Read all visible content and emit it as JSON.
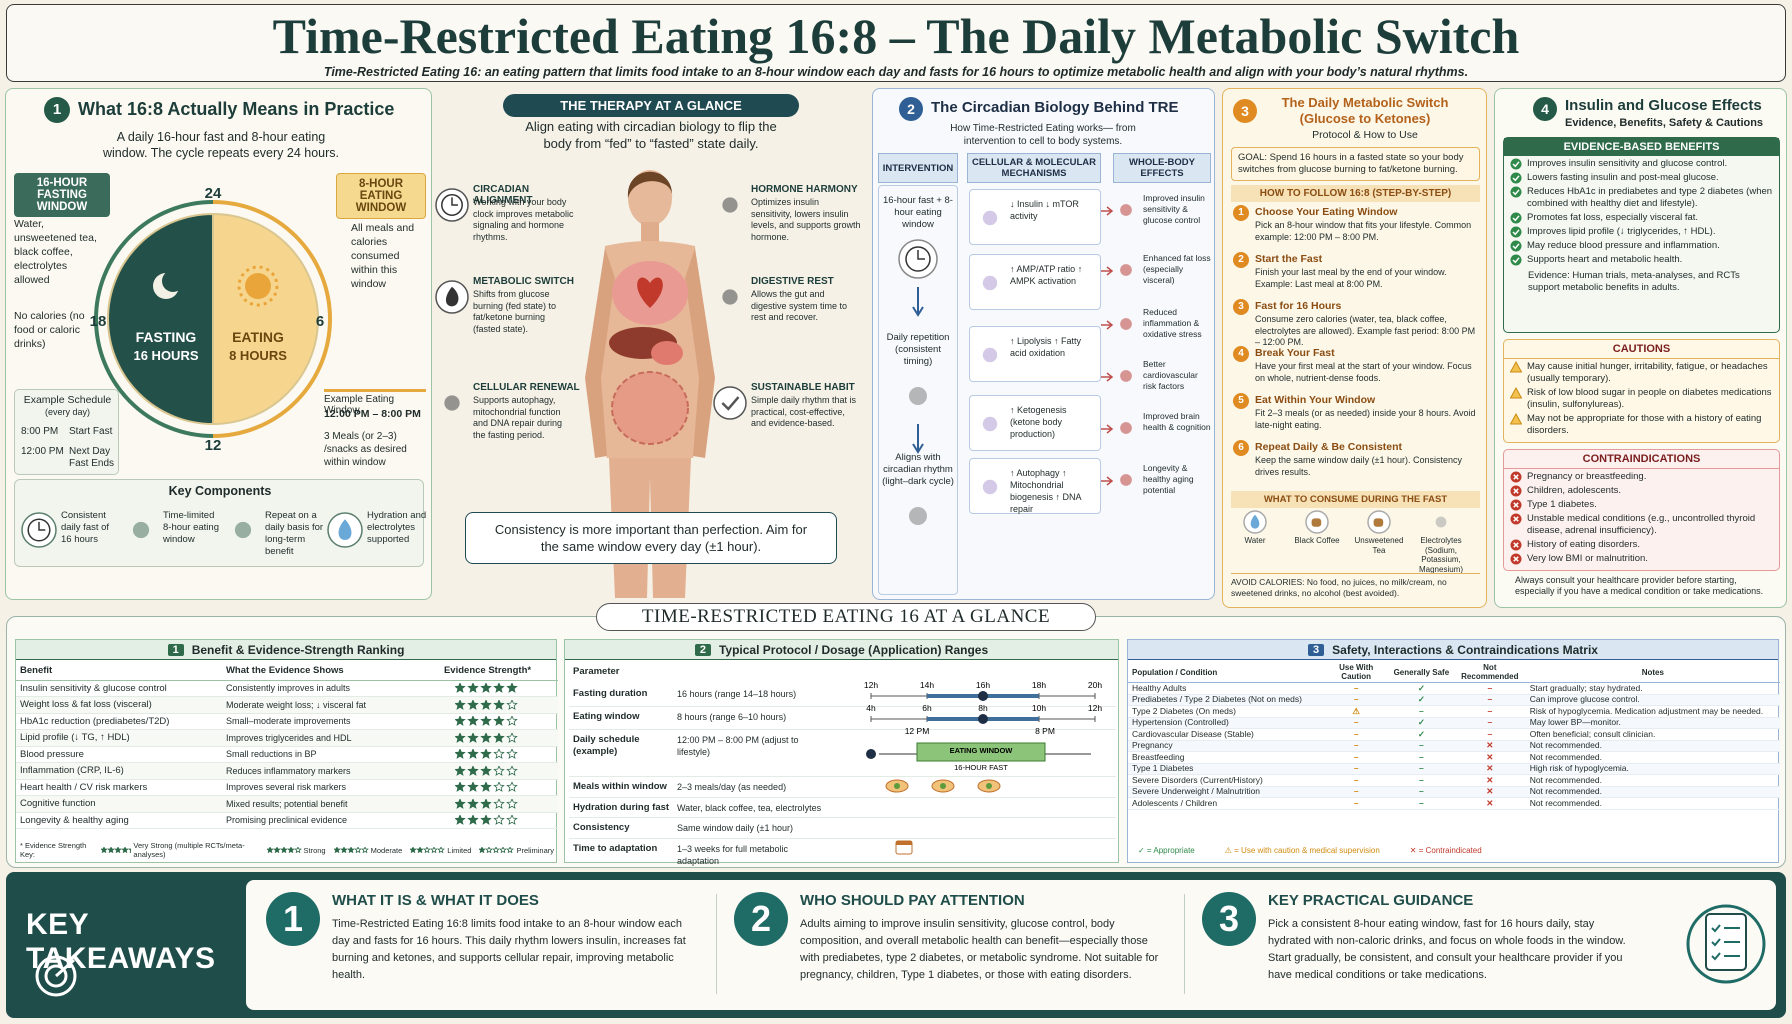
{
  "header": {
    "title": "Time-Restricted Eating 16:8 – The Daily Metabolic Switch",
    "subtitle": "Time-Restricted Eating 16: an eating pattern that limits food intake to an 8-hour window each day and fasts for 16 hours to optimize metabolic health and align with your body’s natural rhythms."
  },
  "panel1": {
    "number": "1",
    "title": "What 16:8 Actually Means in Practice",
    "intro": "A daily 16-hour fast and 8-hour eating window. The cycle repeats every 24 hours.",
    "fast_label": "16-HOUR FASTING WINDOW",
    "fast_desc": "Water, unsweetened tea, black coffee, electrolytes allowed",
    "fast_note": "No calories (no food or caloric drinks)",
    "eat_label": "8-HOUR EATING WINDOW",
    "eat_desc": "All meals and calories consumed within this window",
    "clock": {
      "top": "24",
      "right": "6",
      "bottom": "12",
      "left": "18",
      "fasting": "FASTING",
      "fasting_hours": "16 HOURS",
      "eating": "EATING",
      "eating_hours": "8 HOURS"
    },
    "example_schedule": {
      "title": "Example Schedule",
      "sub": "(every day)",
      "rows": [
        [
          "8:00 PM",
          "Start Fast"
        ],
        [
          "12:00 PM",
          "Next Day Fast Ends"
        ]
      ]
    },
    "example_window": {
      "title": "Example Eating Window",
      "time": "12:00 PM – 8:00 PM",
      "desc": "3 Meals (or 2–3) /snacks as desired within window"
    },
    "key_components": {
      "title": "Key Components",
      "items": [
        "Consistent daily fast of 16 hours",
        "Time-limited 8-hour eating window",
        "Repeat on a daily basis for long-term benefit",
        "Hydration and electrolytes supported"
      ]
    }
  },
  "center": {
    "badge": "THE THERAPY AT A GLANCE",
    "intro": "Align eating with circadian biology to flip the body from “fed” to “fasted” state daily.",
    "items": [
      {
        "title": "CIRCADIAN ALIGNMENT",
        "desc": "Working with your body clock improves metabolic signaling and hormone rhythms."
      },
      {
        "title": "METABOLIC SWITCH",
        "desc": "Shifts from glucose burning (fed state) to fat/ketone burning (fasted state)."
      },
      {
        "title": "CELLULAR RENEWAL",
        "desc": "Supports autophagy, mitochondrial function and DNA repair during the fasting period."
      },
      {
        "title": "HORMONE HARMONY",
        "desc": "Optimizes insulin sensitivity, lowers insulin levels, and supports growth hormone."
      },
      {
        "title": "DIGESTIVE REST",
        "desc": "Allows the gut and digestive system time to rest and recover."
      },
      {
        "title": "SUSTAINABLE HABIT",
        "desc": "Simple daily rhythm that is practical, cost-effective, and evidence-based."
      }
    ],
    "footer": "Consistency is more important than perfection. Aim for the same window every day (±1 hour)."
  },
  "panel2": {
    "number": "2",
    "title": "The Circadian Biology Behind TRE",
    "subtitle": "How Time-Restricted Eating works— from intervention to cell to body systems.",
    "columns": [
      "INTERVENTION",
      "CELLULAR & MOLECULAR MECHANISMS",
      "WHOLE-BODY EFFECTS"
    ],
    "interventions": [
      "16-hour fast + 8-hour eating window",
      "Daily repetition (consistent timing)",
      "Aligns with circadian rhythm (light–dark cycle)"
    ],
    "mechanisms": [
      "↓ Insulin ↓ mTOR activity",
      "↑ AMP/ATP ratio ↑ AMPK activation",
      "↑ Lipolysis ↑ Fatty acid oxidation",
      "↑ Ketogenesis (ketone body production)",
      "↑ Autophagy ↑ Mitochondrial biogenesis ↑ DNA repair"
    ],
    "effects": [
      "Improved insulin sensitivity & glucose control",
      "Enhanced fat loss (especially visceral)",
      "Reduced inflammation & oxidative stress",
      "Better cardiovascular risk factors",
      "Improved brain health & cognition",
      "Longevity & healthy aging potential"
    ]
  },
  "panel3": {
    "number": "3",
    "title": "The Daily Metabolic Switch (Glucose to Ketones)",
    "subtitle": "Protocol & How to Use",
    "goal": "GOAL: Spend 16 hours in a fasted state so your body switches from glucose burning to fat/ketone burning.",
    "steps_title": "HOW TO FOLLOW 16:8 (STEP-BY-STEP)",
    "steps": [
      {
        "num": "1",
        "title": "Choose Your Eating Window",
        "desc": "Pick an 8-hour window that fits your lifestyle. Common example: 12:00 PM – 8:00 PM."
      },
      {
        "num": "2",
        "title": "Start the Fast",
        "desc": "Finish your last meal by the end of your window. Example: Last meal at 8:00 PM."
      },
      {
        "num": "3",
        "title": "Fast for 16 Hours",
        "desc": "Consume zero calories (water, tea, black coffee, electrolytes are allowed). Example fast period: 8:00 PM – 12:00 PM."
      },
      {
        "num": "4",
        "title": "Break Your Fast",
        "desc": "Have your first meal at the start of your window. Focus on whole, nutrient-dense foods."
      },
      {
        "num": "5",
        "title": "Eat Within Your Window",
        "desc": "Fit 2–3 meals (or as needed) inside your 8 hours. Avoid late-night eating."
      },
      {
        "num": "6",
        "title": "Repeat Daily & Be Consistent",
        "desc": "Keep the same window daily (±1 hour). Consistency drives results."
      }
    ],
    "consume_title": "WHAT TO CONSUME DURING THE FAST",
    "consume": [
      "Water",
      "Black Coffee",
      "Unsweetened Tea",
      "Electrolytes (Sodium, Potassium, Magnesium)"
    ],
    "avoid": "AVOID CALORIES: No food, no juices, no milk/cream, no sweetened drinks, no alcohol (best avoided)."
  },
  "panel4": {
    "number": "4",
    "title": "Insulin and Glucose Effects",
    "subtitle": "Evidence, Benefits, Safety & Cautions",
    "benefits_title": "EVIDENCE-BASED BENEFITS",
    "benefits": [
      "Improves insulin sensitivity and glucose control.",
      "Lowers fasting insulin and post-meal glucose.",
      "Reduces HbA1c in prediabetes and type 2 diabetes (when combined with healthy diet and lifestyle).",
      "Promotes fat loss, especially visceral fat.",
      "Improves lipid profile (↓ triglycerides, ↑ HDL).",
      "May reduce blood pressure and inflammation.",
      "Supports heart and metabolic health."
    ],
    "evidence": "Evidence: Human trials, meta-analyses, and RCTs support metabolic benefits in adults.",
    "cautions_title": "CAUTIONS",
    "cautions": [
      "May cause initial hunger, irritability, fatigue, or headaches (usually temporary).",
      "Risk of low blood sugar in people on diabetes medications (insulin, sulfonylureas).",
      "May not be appropriate for those with a history of eating disorders."
    ],
    "contra_title": "CONTRAINDICATIONS",
    "contra": [
      "Pregnancy or breastfeeding.",
      "Children, adolescents.",
      "Type 1 diabetes.",
      "Unstable medical conditions (e.g., uncontrolled thyroid disease, adrenal insufficiency).",
      "History of eating disorders.",
      "Very low BMI or malnutrition."
    ],
    "note": "Always consult your healthcare provider before starting, especially if you have a medical condition or take medications."
  },
  "glance": {
    "title": "TIME-RESTRICTED EATING 16 AT A GLANCE"
  },
  "table1": {
    "number": "1",
    "title": "Benefit & Evidence-Strength Ranking",
    "headers": [
      "Benefit",
      "What the Evidence Shows",
      "Evidence Strength*"
    ],
    "rows": [
      {
        "benefit": "Insulin sensitivity & glucose control",
        "shows": "Consistently improves in adults",
        "stars": 5
      },
      {
        "benefit": "Weight loss & fat loss (visceral)",
        "shows": "Moderate weight loss; ↓ visceral fat",
        "stars": 4
      },
      {
        "benefit": "HbA1c reduction (prediabetes/T2D)",
        "shows": "Small–moderate improvements",
        "stars": 4
      },
      {
        "benefit": "Lipid profile (↓ TG, ↑ HDL)",
        "shows": "Improves triglycerides and HDL",
        "stars": 4
      },
      {
        "benefit": "Blood pressure",
        "shows": "Small reductions in BP",
        "stars": 3
      },
      {
        "benefit": "Inflammation (CRP, IL-6)",
        "shows": "Reduces inflammatory markers",
        "stars": 3
      },
      {
        "benefit": "Heart health / CV risk markers",
        "shows": "Improves several risk markers",
        "stars": 3
      },
      {
        "benefit": "Cognitive function",
        "shows": "Mixed results; potential benefit",
        "stars": 3
      },
      {
        "benefit": "Longevity & healthy aging",
        "shows": "Promising preclinical evidence",
        "stars": 3
      }
    ],
    "key_title": "* Evidence Strength Key:",
    "key": [
      {
        "stars": 5,
        "label": "Very Strong (multiple RCTs/meta-analyses)"
      },
      {
        "stars": 4,
        "label": "Strong"
      },
      {
        "stars": 3,
        "label": "Moderate"
      },
      {
        "stars": 2,
        "label": "Limited"
      },
      {
        "stars": 1,
        "label": "Preliminary"
      }
    ]
  },
  "table2": {
    "number": "2",
    "title": "Typical Protocol / Dosage (Application) Ranges",
    "header": "Parameter",
    "rows": [
      {
        "param": "Fasting duration",
        "value": "16 hours (range 14–18 hours)",
        "scale": {
          "lim": [
            12,
            20
          ],
          "ticks": [
            {
              "value": 12,
              "label": "12h"
            },
            {
              "value": 14,
              "label": "14h"
            },
            {
              "value": 16,
              "label": "16h"
            },
            {
              "value": 18,
              "label": "18h"
            },
            {
              "value": 20,
              "label": "20h"
            }
          ],
          "range": [
            14,
            18
          ],
          "point": 16
        }
      },
      {
        "param": "Eating window",
        "value": "8 hours (range 6–10 hours)",
        "scale": {
          "lim": [
            4,
            12
          ],
          "ticks": [
            {
              "value": 4,
              "label": "4h"
            },
            {
              "value": 6,
              "label": "6h"
            },
            {
              "value": 8,
              "label": "8h"
            },
            {
              "value": 10,
              "label": "10h"
            },
            {
              "value": 12,
              "label": "12h"
            }
          ],
          "range": [
            6,
            10
          ],
          "point": 8
        }
      },
      {
        "param": "Daily schedule (example)",
        "value": "12:00 PM – 8:00 PM (adjust to lifestyle)",
        "timeline": {
          "start": "12 PM",
          "end": "8 PM",
          "window": "EATING WINDOW",
          "fast": "16-HOUR FAST"
        }
      },
      {
        "param": "Meals within window",
        "value": "2–3 meals/day (as needed)"
      },
      {
        "param": "Hydration during fast",
        "value": "Water, black coffee, tea, electrolytes"
      },
      {
        "param": "Consistency",
        "value": "Same window daily (±1 hour)"
      },
      {
        "param": "Time to adaptation",
        "value": "1–3 weeks for full metabolic adaptation"
      }
    ]
  },
  "table3": {
    "number": "3",
    "title": "Safety, Interactions & Contraindications Matrix",
    "headers": [
      "Population / Condition",
      "Use With Caution",
      "Generally Safe",
      "Not Recommended",
      "Notes"
    ],
    "rows": [
      [
        "Healthy Adults",
        "–",
        "✓",
        "–",
        "Start gradually; stay hydrated."
      ],
      [
        "Prediabetes / Type 2 Diabetes (Not on meds)",
        "–",
        "✓",
        "–",
        "Can improve glucose control."
      ],
      [
        "Type 2 Diabetes (On meds)",
        "⚠",
        "–",
        "–",
        "Risk of hypoglycemia. Medication adjustment may be needed."
      ],
      [
        "Hypertension (Controlled)",
        "–",
        "✓",
        "–",
        "May lower BP—monitor."
      ],
      [
        "Cardiovascular Disease (Stable)",
        "–",
        "✓",
        "–",
        "Often beneficial; consult clinician."
      ],
      [
        "Pregnancy",
        "–",
        "–",
        "✕",
        "Not recommended."
      ],
      [
        "Breastfeeding",
        "–",
        "–",
        "✕",
        "Not recommended."
      ],
      [
        "Type 1 Diabetes",
        "–",
        "–",
        "✕",
        "High risk of hypoglycemia."
      ],
      [
        "Severe Disorders (Current/History)",
        "–",
        "–",
        "✕",
        "Not recommended."
      ],
      [
        "Severe Underweight / Malnutrition",
        "–",
        "–",
        "✕",
        "Not recommended."
      ],
      [
        "Adolescents / Children",
        "–",
        "–",
        "✕",
        "Not recommended."
      ]
    ],
    "legend": [
      "✓ = Appropriate",
      "⚠ = Use with caution & medical supervision",
      "✕ = Contraindicated"
    ]
  },
  "takeaways": {
    "title": "KEY TAKEAWAYS",
    "items": [
      {
        "num": "1",
        "title": "WHAT IT IS & WHAT IT DOES",
        "text": "Time-Restricted Eating 16:8 limits food intake to an 8-hour window each day and fasts for 16 hours. This daily rhythm lowers insulin, increases fat burning and ketones, and supports cellular repair, improving metabolic health."
      },
      {
        "num": "2",
        "title": "WHO SHOULD PAY ATTENTION",
        "text": "Adults aiming to improve insulin sensitivity, glucose control, body composition, and overall metabolic health can benefit—especially those with prediabetes, type 2 diabetes, or metabolic syndrome. Not suitable for pregnancy, children, Type 1 diabetes, or those with eating disorders."
      },
      {
        "num": "3",
        "title": "KEY PRACTICAL GUIDANCE",
        "text": "Pick a consistent 8-hour eating window, fast for 16 hours daily, stay hydrated with non-caloric drinks, and focus on whole foods in the window. Start gradually, be consistent, and consult your healthcare provider if you have medical conditions or take medications."
      }
    ]
  }
}
